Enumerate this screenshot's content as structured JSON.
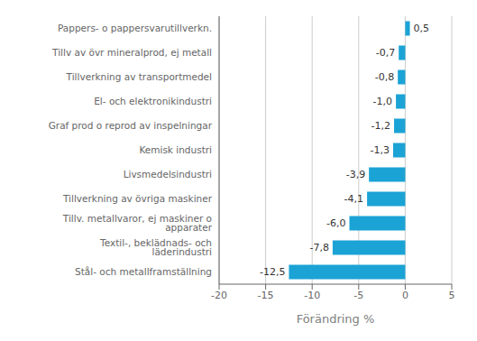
{
  "chart_data": {
    "type": "bar",
    "orientation": "horizontal",
    "categories": [
      "Stål- och metallframställning",
      "Textil-, beklädnads- och läderindustri",
      "Tillv. metallvaror, ej maskiner o apparater",
      "Tillverkning av övriga maskiner",
      "Livsmedelsindustri",
      "Kemisk industri",
      "Graf prod o reprod av inspelningar",
      "El- och elektronikindustri",
      "Tillverkning av transportmedel",
      "Tillv av övr mineralprod, ej metall",
      "Pappers- o pappersvarutillverkn."
    ],
    "values": [
      -12.5,
      -7.8,
      -6.0,
      -4.1,
      -3.9,
      -1.3,
      -1.2,
      -1.0,
      -0.8,
      -0.7,
      0.5
    ],
    "value_labels": [
      "-12,5",
      "-7,8",
      "-6,0",
      "-4,1",
      "-3,9",
      "-1,3",
      "-1,2",
      "-1,0",
      "-0,8",
      "-0,7",
      "0,5"
    ],
    "data_labels": true,
    "color": "#1ba3d5",
    "xlabel": "Förändring %",
    "xlim": [
      -20,
      5
    ],
    "xticks": [
      -20,
      -15,
      -10,
      -5,
      0,
      5
    ],
    "grid": true
  }
}
